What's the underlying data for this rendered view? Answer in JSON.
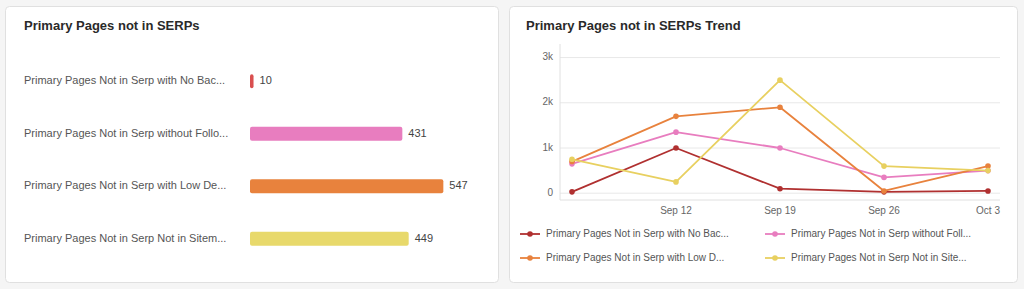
{
  "chart_data": [
    {
      "type": "bar",
      "title": "Primary Pages not in SERPs",
      "orientation": "horizontal",
      "categories": [
        "Primary Pages Not in Serp with No Bac...",
        "Primary Pages Not in Serp without Follo...",
        "Primary Pages Not in Serp with Low De...",
        "Primary Pages Not in Serp Not in Sitem..."
      ],
      "values": [
        10,
        431,
        547,
        449
      ],
      "colors": [
        "#d94f4f",
        "#e87dbf",
        "#e8823d",
        "#e8d96b"
      ],
      "xlim": [
        0,
        580
      ],
      "data_labels": true,
      "tick_labels": "y"
    },
    {
      "type": "line",
      "title": "Primary Pages not in SERPs Trend",
      "categories": [
        null,
        "Sep 12",
        "Sep 19",
        "Sep 26",
        "Oct 3"
      ],
      "series": [
        {
          "name": "Primary Pages Not in Serp with No Bac...",
          "color": "#b03030",
          "values": [
            30,
            1000,
            100,
            30,
            50
          ]
        },
        {
          "name": "Primary Pages Not in Serp without Foll...",
          "color": "#e87dbf",
          "values": [
            650,
            1350,
            1000,
            350,
            500
          ]
        },
        {
          "name": "Primary Pages Not in Serp with Low D...",
          "color": "#e8823d",
          "values": [
            700,
            1700,
            1900,
            50,
            600
          ]
        },
        {
          "name": "Primary Pages Not in Serp Not in Site...",
          "color": "#e8d060",
          "values": [
            750,
            250,
            2500,
            600,
            500
          ]
        }
      ],
      "ylim": [
        -150,
        3300
      ],
      "yticks": [
        0,
        {
          "value": 1000,
          "label": "1k"
        },
        {
          "value": 2000,
          "label": "2k"
        },
        {
          "value": 3000,
          "label": "3k"
        }
      ],
      "grid": true,
      "marker": "circle",
      "legend": "bottom"
    }
  ]
}
